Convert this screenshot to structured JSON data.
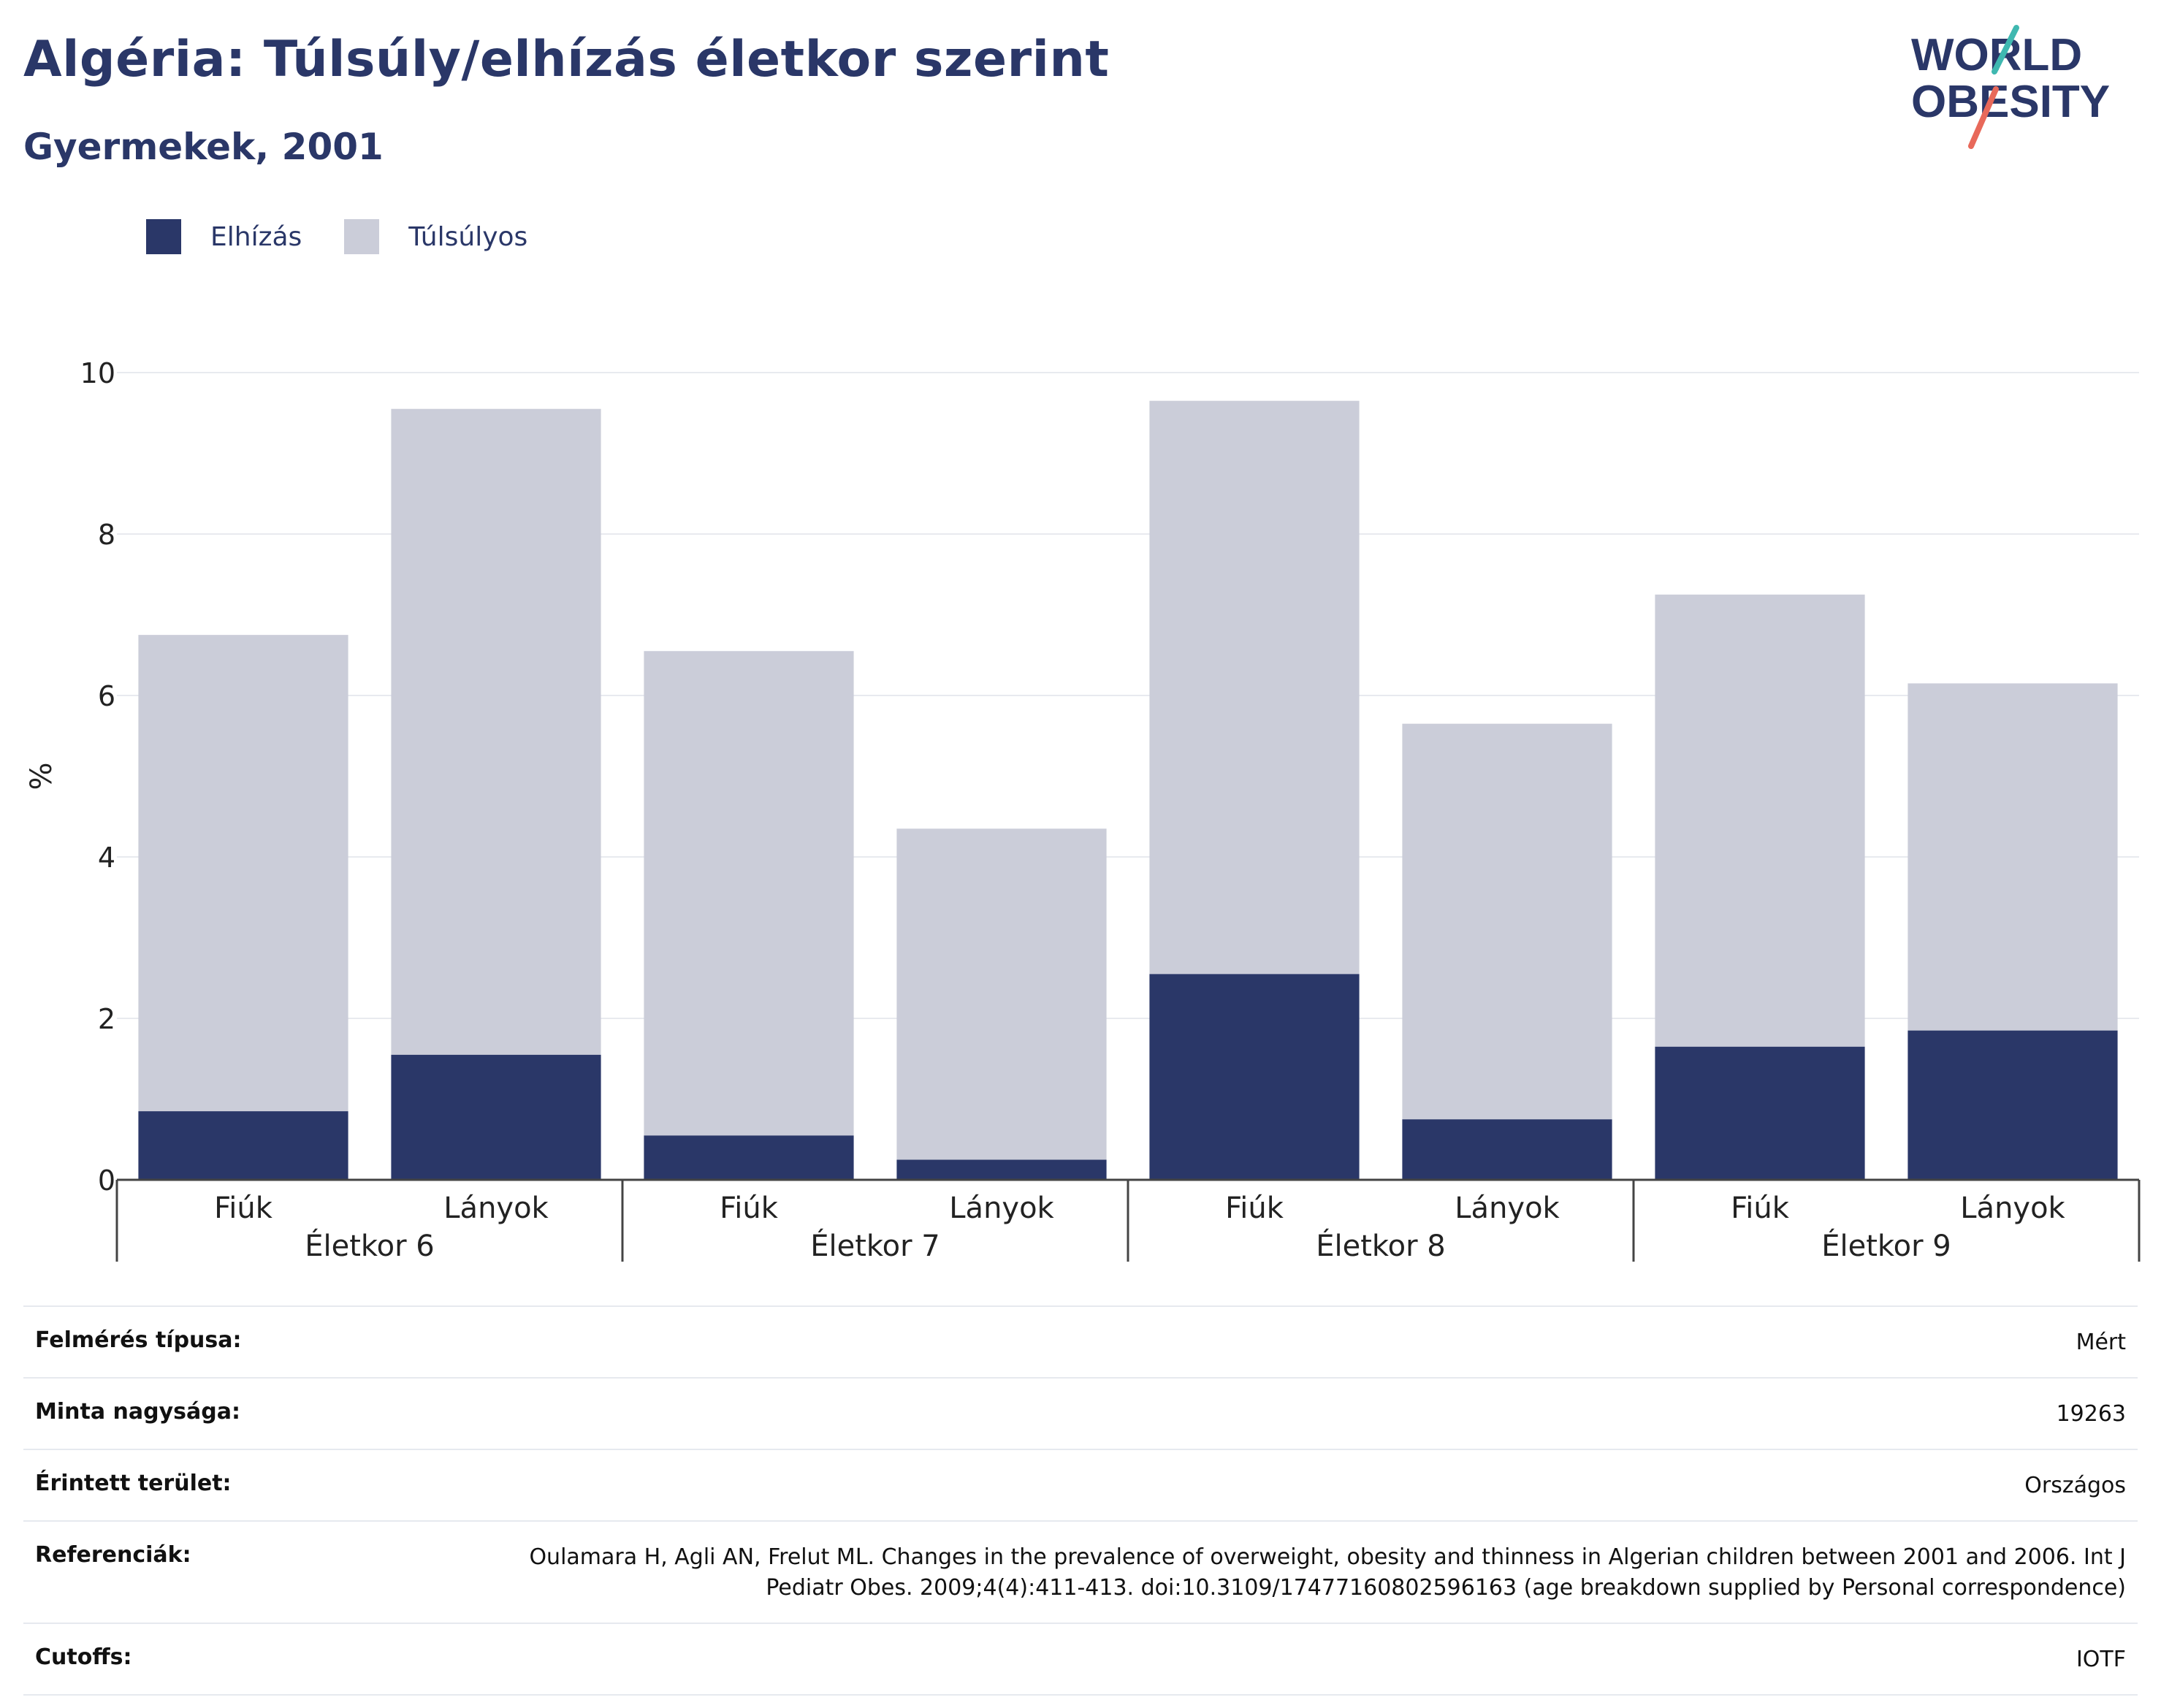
{
  "header": {
    "title": "Algéria: Túlsúly/elhízás életkor szerint",
    "subtitle": "Gyermekek, 2001"
  },
  "logo": {
    "line1": "WORLD",
    "line2": "OBESITY"
  },
  "legend": [
    {
      "label": "Elhízás",
      "color": "#2a3768"
    },
    {
      "label": "Túlsúlyos",
      "color": "#cbcdd9"
    }
  ],
  "chart_data": {
    "type": "bar",
    "stacked": true,
    "ylabel": "%",
    "ylim": [
      0,
      10
    ],
    "yticks": [
      0,
      2,
      4,
      6,
      8,
      10
    ],
    "grid": true,
    "legend_position": "top-left",
    "groups": [
      "Életkor 6",
      "Életkor 7",
      "Életkor 8",
      "Életkor 9"
    ],
    "categories": [
      "Fiúk",
      "Lányok",
      "Fiúk",
      "Lányok",
      "Fiúk",
      "Lányok",
      "Fiúk",
      "Lányok"
    ],
    "series": [
      {
        "name": "Elhízás",
        "color": "#2a3768",
        "values": [
          0.85,
          1.55,
          0.55,
          0.25,
          2.55,
          0.75,
          1.65,
          1.85
        ]
      },
      {
        "name": "Túlsúlyos",
        "color": "#cbcdd9",
        "values": [
          5.9,
          8.0,
          6.0,
          4.1,
          7.1,
          4.9,
          5.6,
          4.3
        ]
      }
    ]
  },
  "info": [
    {
      "label": "Felmérés típusa:",
      "value": "Mért"
    },
    {
      "label": "Minta nagysága:",
      "value": "19263"
    },
    {
      "label": "Érintett terület:",
      "value": "Országos"
    },
    {
      "label": "Referenciák:",
      "value": "Oulamara H, Agli AN, Frelut ML. Changes in the prevalence of overweight, obesity and thinness in Algerian children between 2001 and 2006. Int J Pediatr Obes. 2009;4(4):411-413. doi:10.3109/17477160802596163 (age breakdown supplied by Personal correspondence)"
    },
    {
      "label": "Cutoffs:",
      "value": "IOTF"
    }
  ]
}
